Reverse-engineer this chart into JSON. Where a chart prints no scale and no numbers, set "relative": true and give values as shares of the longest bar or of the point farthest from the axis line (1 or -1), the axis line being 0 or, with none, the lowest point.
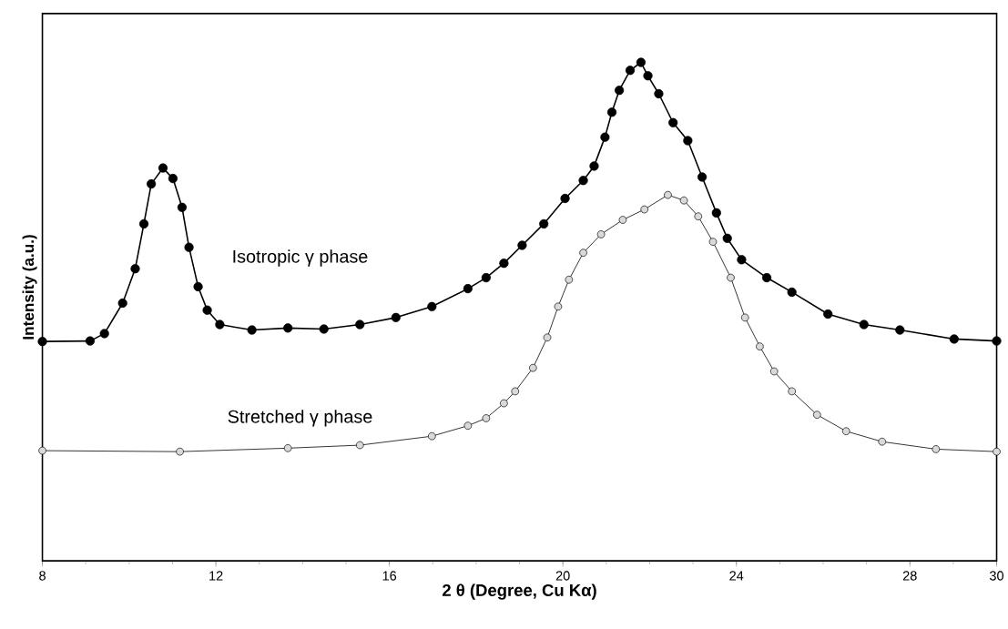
{
  "chart_data": {
    "type": "line",
    "relative": true,
    "marker": "circle",
    "xlabel": "2 θ (Degree, Cu Kα)",
    "ylabel": "Intensity (a.u.)",
    "xlim": [
      8,
      30
    ],
    "xticks": [
      8,
      12,
      16,
      20,
      24,
      28,
      30
    ],
    "grid": false,
    "series": [
      {
        "name": "Isotropic γ phase",
        "color": "#000000",
        "x": [
          8.0,
          9.1,
          9.43,
          9.85,
          10.14,
          10.34,
          10.51,
          10.78,
          11.01,
          11.22,
          11.38,
          11.59,
          11.8,
          12.09,
          12.83,
          13.66,
          14.49,
          15.32,
          16.15,
          16.98,
          17.81,
          18.23,
          18.64,
          19.06,
          19.56,
          20.05,
          20.47,
          20.72,
          20.97,
          21.13,
          21.3,
          21.55,
          21.8,
          21.96,
          22.21,
          22.54,
          22.88,
          23.21,
          23.54,
          23.79,
          24.12,
          24.7,
          25.28,
          26.11,
          26.94,
          27.77,
          29.02,
          30.0
        ],
        "values": [
          0.44,
          0.441,
          0.456,
          0.517,
          0.586,
          0.676,
          0.756,
          0.788,
          0.767,
          0.709,
          0.629,
          0.55,
          0.503,
          0.474,
          0.463,
          0.467,
          0.465,
          0.474,
          0.488,
          0.51,
          0.546,
          0.568,
          0.597,
          0.633,
          0.676,
          0.727,
          0.763,
          0.792,
          0.85,
          0.9,
          0.944,
          0.984,
          1.0,
          0.973,
          0.937,
          0.879,
          0.843,
          0.77,
          0.698,
          0.647,
          0.604,
          0.568,
          0.539,
          0.495,
          0.474,
          0.463,
          0.445,
          0.441
        ]
      },
      {
        "name": "Stretched γ   phase",
        "color": "#d9d9d9",
        "x": [
          8.0,
          11.17,
          13.66,
          15.32,
          16.98,
          17.81,
          18.23,
          18.64,
          18.9,
          19.31,
          19.64,
          19.89,
          20.14,
          20.47,
          20.88,
          21.38,
          21.88,
          22.42,
          22.79,
          23.12,
          23.46,
          23.87,
          24.2,
          24.54,
          24.87,
          25.28,
          25.86,
          26.53,
          27.36,
          28.6,
          30.0
        ],
        "values": [
          0.221,
          0.219,
          0.226,
          0.232,
          0.25,
          0.271,
          0.286,
          0.316,
          0.34,
          0.387,
          0.448,
          0.51,
          0.564,
          0.618,
          0.655,
          0.684,
          0.705,
          0.734,
          0.723,
          0.691,
          0.64,
          0.568,
          0.488,
          0.43,
          0.38,
          0.34,
          0.293,
          0.26,
          0.239,
          0.224,
          0.219
        ]
      }
    ]
  }
}
